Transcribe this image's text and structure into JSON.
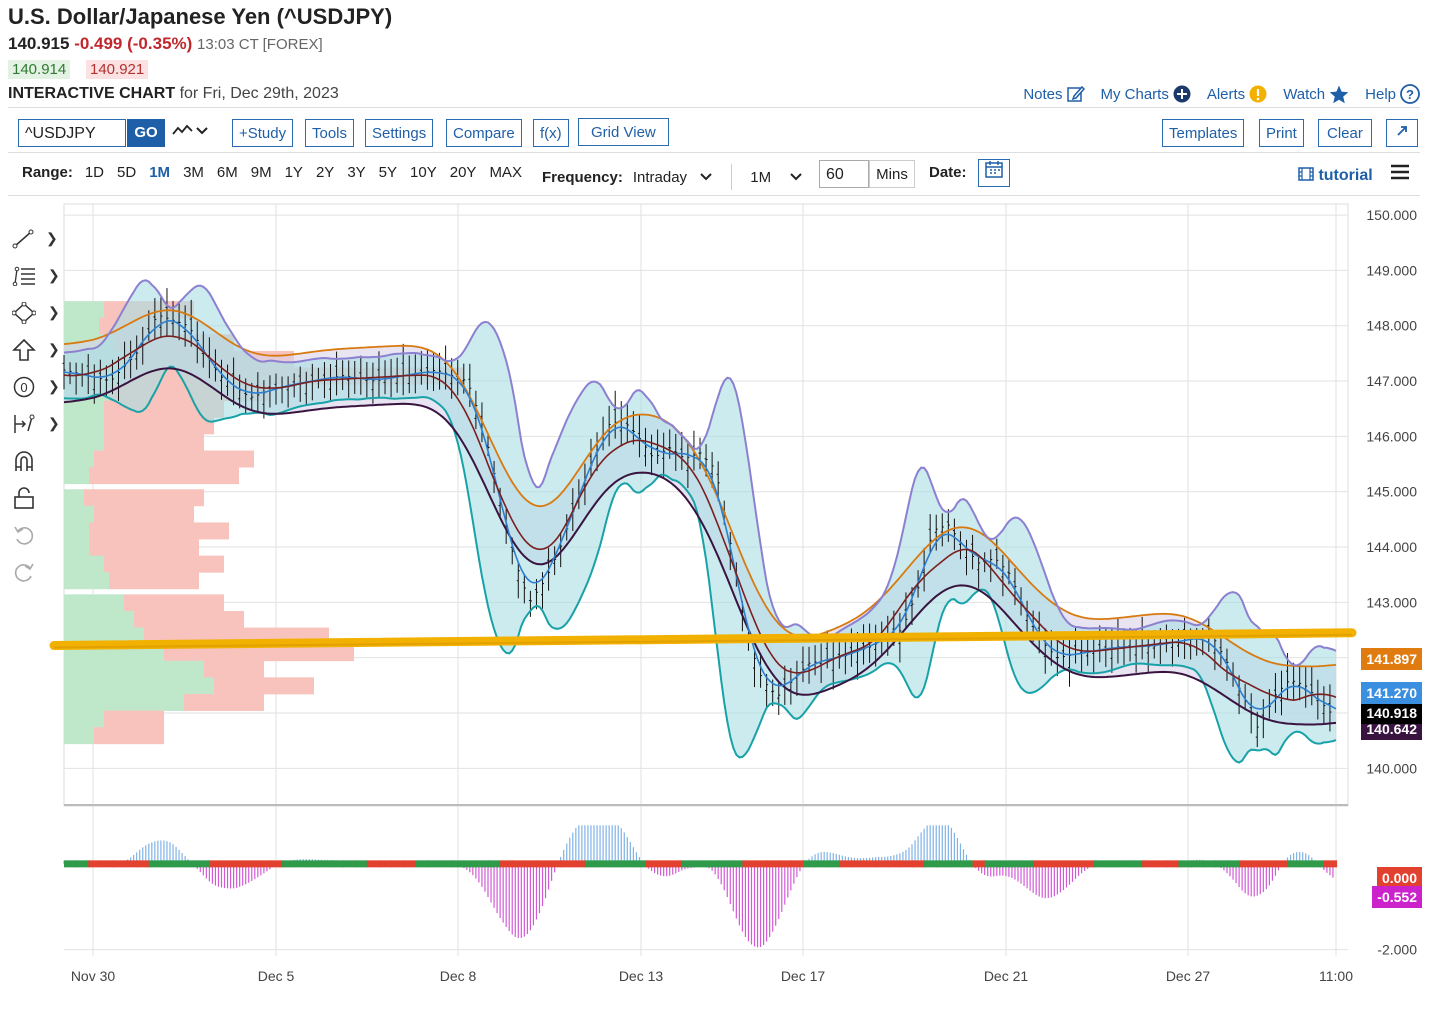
{
  "header": {
    "title": "U.S. Dollar/Japanese Yen (^USDJPY)",
    "last": "140.915",
    "change": "-0.499 (-0.35%)",
    "time": "13:03 CT [FOREX]",
    "bid": "140.914",
    "ask": "140.921",
    "chart_label": "INTERACTIVE CHART",
    "chart_for": "for Fri, Dec 29th, 2023"
  },
  "links": {
    "notes": "Notes",
    "my_charts": "My Charts",
    "alerts": "Alerts",
    "watch": "Watch",
    "help": "Help"
  },
  "toolbar": {
    "symbol": "^USDJPY",
    "go": "GO",
    "study": "+Study",
    "tools": "Tools",
    "settings": "Settings",
    "compare": "Compare",
    "fx": "f(x)",
    "grid_view": "Grid View",
    "templates": "Templates",
    "print": "Print",
    "clear": "Clear"
  },
  "range": {
    "label": "Range:",
    "options": [
      "1D",
      "5D",
      "1M",
      "3M",
      "6M",
      "9M",
      "1Y",
      "2Y",
      "3Y",
      "5Y",
      "10Y",
      "20Y",
      "MAX"
    ],
    "selected": "1M",
    "frequency_label": "Frequency:",
    "frequency": "Intraday",
    "interval": "1M",
    "mins_value": "60",
    "mins_label": "Mins",
    "date_label": "Date:",
    "tutorial": "tutorial"
  },
  "icons": [
    "pencil-note-icon",
    "plus-circle-icon",
    "alert-icon",
    "star-icon",
    "help-icon",
    "line-tool-icon",
    "fib-tool-icon",
    "shape-tool-icon",
    "arrow-tool-icon",
    "circle-zero-icon",
    "measure-tool-icon",
    "magnet-icon",
    "lock-icon",
    "undo-icon",
    "redo-icon",
    "calendar-icon",
    "menu-icon"
  ],
  "colors": {
    "accent": "#1f5fa8",
    "orange": "#e07b10",
    "blue_tag": "#3a8fe0",
    "support_line": "#f2b100",
    "up": "#2e9a4a",
    "down": "#e3412f"
  },
  "chart_data": {
    "type": "candlestick",
    "x_labels": [
      "Nov 30",
      "Dec 5",
      "Dec 8",
      "Dec 13",
      "Dec 17",
      "Dec 21",
      "Dec 27",
      "11:00"
    ],
    "y_ticks": [
      "150.000",
      "149.000",
      "148.000",
      "147.000",
      "146.000",
      "145.000",
      "144.000",
      "143.000",
      "140.000"
    ],
    "ylim": [
      139.5,
      150.2
    ],
    "close_path": [
      [
        0,
        147.2
      ],
      [
        3,
        147.0
      ],
      [
        5,
        147.6
      ],
      [
        6,
        148.2
      ],
      [
        8,
        148.0
      ],
      [
        10,
        147.1
      ],
      [
        12,
        146.7
      ],
      [
        14,
        146.9
      ],
      [
        16,
        147.0
      ],
      [
        18,
        147.1
      ],
      [
        20,
        147.0
      ],
      [
        22,
        147.1
      ],
      [
        24,
        147.2
      ],
      [
        26,
        147.0
      ],
      [
        27,
        146.2
      ],
      [
        28,
        145.0
      ],
      [
        29,
        143.8
      ],
      [
        30,
        143.0
      ],
      [
        31,
        143.4
      ],
      [
        32,
        144.0
      ],
      [
        33,
        144.8
      ],
      [
        34,
        145.5
      ],
      [
        35,
        146.2
      ],
      [
        36,
        146.3
      ],
      [
        37,
        146.0
      ],
      [
        38,
        145.6
      ],
      [
        39,
        145.8
      ],
      [
        40,
        145.6
      ],
      [
        41,
        145.7
      ],
      [
        42,
        145.4
      ],
      [
        43,
        144.0
      ],
      [
        44,
        142.4
      ],
      [
        45,
        141.6
      ],
      [
        46,
        141.3
      ],
      [
        47,
        141.6
      ],
      [
        48,
        141.9
      ],
      [
        50,
        142.0
      ],
      [
        52,
        142.2
      ],
      [
        54,
        142.5
      ],
      [
        55,
        143.2
      ],
      [
        56,
        144.3
      ],
      [
        57,
        144.4
      ],
      [
        58,
        144.0
      ],
      [
        59,
        143.7
      ],
      [
        60,
        143.8
      ],
      [
        61,
        143.5
      ],
      [
        62,
        142.8
      ],
      [
        63,
        142.3
      ],
      [
        64,
        142.0
      ],
      [
        66,
        142.1
      ],
      [
        68,
        142.2
      ],
      [
        70,
        142.2
      ],
      [
        72,
        142.3
      ],
      [
        74,
        142.4
      ],
      [
        75,
        141.9
      ],
      [
        76,
        141.3
      ],
      [
        77,
        140.7
      ],
      [
        78,
        141.3
      ],
      [
        79,
        141.6
      ],
      [
        80,
        141.5
      ],
      [
        81,
        141.2
      ],
      [
        82,
        140.9
      ]
    ],
    "support_line": [
      142.22,
      142.45
    ],
    "price_tags": [
      {
        "value": "141.897",
        "color": "#e07b10"
      },
      {
        "value": "141.270",
        "color": "#3a8fe0"
      },
      {
        "value": "140.918",
        "color": "#000000"
      },
      {
        "value": "140.642",
        "color": "#3a1440"
      }
    ],
    "indicator": {
      "ylim": [
        -2.5,
        1.0
      ],
      "y_ticks": [
        "-2.000"
      ],
      "tags": [
        {
          "value": "0.000",
          "color": "#e3412f"
        },
        {
          "value": "-0.552",
          "color": "#cc22cc"
        }
      ]
    }
  }
}
